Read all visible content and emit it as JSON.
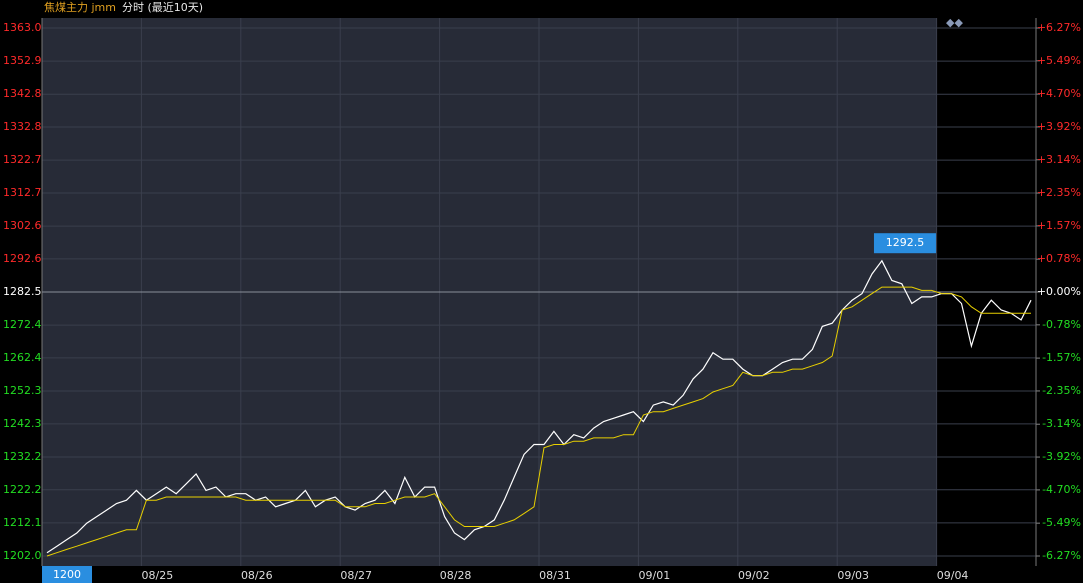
{
  "chart_data": {
    "type": "line",
    "title": "焦煤主力 jmm",
    "subtitle": "分时 (最近10天)",
    "cursor_label": "1200",
    "x": [
      0.05,
      0.15,
      0.25,
      0.35,
      0.45,
      0.55,
      0.65,
      0.75,
      0.85,
      0.95,
      1.05,
      1.15,
      1.25,
      1.35,
      1.45,
      1.55,
      1.65,
      1.75,
      1.85,
      1.95,
      2.05,
      2.15,
      2.25,
      2.35,
      2.45,
      2.55,
      2.65,
      2.75,
      2.85,
      2.95,
      3.05,
      3.15,
      3.25,
      3.35,
      3.45,
      3.55,
      3.65,
      3.75,
      3.85,
      3.95,
      4.05,
      4.15,
      4.25,
      4.35,
      4.45,
      4.55,
      4.65,
      4.75,
      4.85,
      4.95,
      5.05,
      5.15,
      5.25,
      5.35,
      5.45,
      5.55,
      5.65,
      5.75,
      5.85,
      5.95,
      6.05,
      6.15,
      6.25,
      6.35,
      6.45,
      6.55,
      6.65,
      6.75,
      6.85,
      6.95,
      7.05,
      7.15,
      7.25,
      7.35,
      7.45,
      7.55,
      7.65,
      7.75,
      7.85,
      7.95,
      8.05,
      8.15,
      8.25,
      8.35,
      8.45,
      8.55,
      8.65,
      8.75,
      8.85,
      8.95,
      9.05,
      9.15,
      9.25,
      9.35,
      9.45,
      9.55,
      9.65,
      9.75,
      9.85,
      9.95
    ],
    "series": [
      {
        "color": "#ffffff",
        "values": [
          1203,
          1205,
          1207,
          1209,
          1212,
          1214,
          1216,
          1218,
          1219,
          1222,
          1219,
          1221,
          1223,
          1221,
          1224,
          1227,
          1222,
          1223,
          1220,
          1221,
          1221,
          1219,
          1220,
          1217,
          1218,
          1219,
          1222,
          1217,
          1219,
          1220,
          1217,
          1216,
          1218,
          1219,
          1222,
          1218,
          1226,
          1220,
          1223,
          1223,
          1214,
          1209,
          1207,
          1210,
          1211,
          1213,
          1219,
          1226,
          1233,
          1236,
          1236,
          1240,
          1236,
          1239,
          1238,
          1241,
          1243,
          1244,
          1245,
          1246,
          1243,
          1248,
          1249,
          1248,
          1251,
          1256,
          1259,
          1264,
          1262,
          1262,
          1259,
          1257,
          1257,
          1259,
          1261,
          1262,
          1262,
          1265,
          1272,
          1273,
          1277,
          1280,
          1282,
          1288,
          1292,
          1286,
          1285,
          1279,
          1281,
          1281,
          1282,
          1282,
          1279,
          1266,
          1276,
          1280,
          1277,
          1276,
          1274,
          1280
        ]
      },
      {
        "color": "#e8d000",
        "values": [
          1202,
          1203,
          1204,
          1205,
          1206,
          1207,
          1208,
          1209,
          1210,
          1210,
          1219,
          1219,
          1220,
          1220,
          1220,
          1220,
          1220,
          1220,
          1220,
          1220,
          1219,
          1219,
          1219,
          1219,
          1219,
          1219,
          1219,
          1219,
          1219,
          1219,
          1217,
          1217,
          1217,
          1218,
          1218,
          1219,
          1220,
          1220,
          1220,
          1221,
          1217,
          1213,
          1211,
          1211,
          1211,
          1211,
          1212,
          1213,
          1215,
          1217,
          1235,
          1236,
          1236,
          1237,
          1237,
          1238,
          1238,
          1238,
          1239,
          1239,
          1245,
          1246,
          1246,
          1247,
          1248,
          1249,
          1250,
          1252,
          1253,
          1254,
          1258,
          1257,
          1257,
          1258,
          1258,
          1259,
          1259,
          1260,
          1261,
          1263,
          1277,
          1278,
          1280,
          1282,
          1284,
          1284,
          1284,
          1284,
          1283,
          1283,
          1282,
          1282,
          1281,
          1278,
          1276,
          1276,
          1276,
          1276,
          1276,
          1276
        ]
      }
    ],
    "annotations": [
      {
        "x": 8.38,
        "value": 1292.5
      }
    ],
    "prev_close": 1282.5,
    "up_color": "#ff2a2a",
    "down_color": "#22dd22",
    "flat_color": "#ffffff",
    "xlim": [
      0,
      10
    ],
    "xticks": [
      {
        "value": 1,
        "label": "08/25"
      },
      {
        "value": 2,
        "label": "08/26"
      },
      {
        "value": 3,
        "label": "08/27"
      },
      {
        "value": 4,
        "label": "08/28"
      },
      {
        "value": 5,
        "label": "08/31"
      },
      {
        "value": 6,
        "label": "09/01"
      },
      {
        "value": 7,
        "label": "09/02"
      },
      {
        "value": 8,
        "label": "09/03"
      },
      {
        "value": 9,
        "label": "09/04"
      }
    ],
    "ylim": [
      1202.0,
      1363.0
    ],
    "yticks": [
      {
        "value": 1363.0,
        "label": "1363.0"
      },
      1352.9,
      1342.8,
      1332.8,
      1322.7,
      1312.7,
      1302.6,
      1292.6,
      1282.5,
      1272.4,
      1262.4,
      1252.3,
      1242.3,
      1232.2,
      1222.2,
      1212.1,
      {
        "value": 1202.0,
        "label": "1202.0"
      }
    ],
    "y2lim": [
      -6.27,
      6.27
    ],
    "y2ticks": [
      {
        "value": 6.27,
        "label": "+6.27%"
      },
      {
        "value": 5.49,
        "label": "+5.49%"
      },
      {
        "value": 4.7,
        "label": "+4.70%"
      },
      {
        "value": 3.92,
        "label": "+3.92%"
      },
      {
        "value": 3.14,
        "label": "+3.14%"
      },
      {
        "value": 2.35,
        "label": "+2.35%"
      },
      {
        "value": 1.57,
        "label": "+1.57%"
      },
      {
        "value": 0.78,
        "label": "+0.78%"
      },
      {
        "value": 0.0,
        "label": "+0.00%"
      },
      {
        "value": -0.78,
        "label": "-0.78%"
      },
      {
        "value": -1.57,
        "label": "-1.57%"
      },
      {
        "value": -2.35,
        "label": "-2.35%"
      },
      {
        "value": -3.14,
        "label": "-3.14%"
      },
      {
        "value": -3.92,
        "label": "-3.92%"
      },
      {
        "value": -4.7,
        "label": "-4.70%"
      },
      {
        "value": -5.49,
        "label": "-5.49%"
      },
      {
        "value": -6.27,
        "label": "-6.27%"
      }
    ],
    "grid": true
  }
}
